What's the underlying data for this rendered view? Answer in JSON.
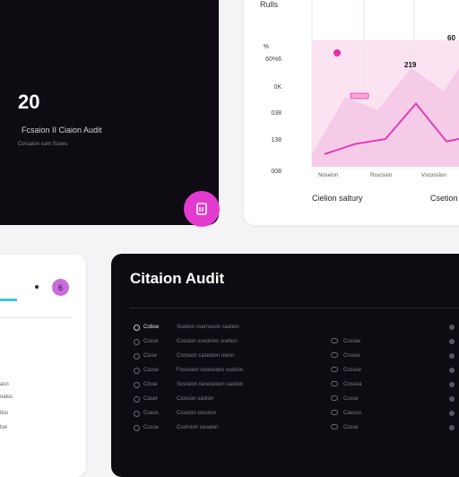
{
  "summary": {
    "count": "20",
    "subtitle": "Fcsaion II Ciaion Audit",
    "meta": "Corsaion sum Scoes",
    "fab_icon": "document-icon"
  },
  "chart_panel": {
    "title": "Rulls",
    "legend_a": "Cielion saltury",
    "legend_b": "Csetion"
  },
  "chart_data": {
    "type": "area",
    "title": "Rulls",
    "y_ticks": [
      "%",
      "60%6",
      "0K",
      "038",
      "138",
      "008"
    ],
    "x_ticks": [
      "Noseion",
      "Rsscsion",
      "Vsconsion"
    ],
    "annotations": [
      "219",
      "60"
    ],
    "series": [
      {
        "values": [
          0.1,
          0.55,
          0.45,
          0.78,
          0.6,
          1.0
        ]
      },
      {
        "values": [
          0.1,
          0.18,
          0.22,
          0.5,
          0.2,
          0.25
        ]
      }
    ],
    "colors": {
      "fill": "#f5c8e6",
      "fill_light": "#fbe3f1",
      "line": "#e231b3",
      "marker": "#e62ea8"
    }
  },
  "left_panel": {
    "badge": "6",
    "items": [
      "asn",
      "oalss",
      "itss",
      "tse"
    ]
  },
  "audit": {
    "title": "Citaion Audit",
    "rows": [
      {
        "id": "Cobse",
        "name": "Scetion csemsoon sastion",
        "status": "",
        "hl": true
      },
      {
        "id": "Cssse",
        "name": "Cossion sceoions scetion",
        "status": "Cssrae"
      },
      {
        "id": "Cisse",
        "name": "Coroson casesion osion",
        "status": "Crsses"
      },
      {
        "id": "Csose",
        "name": "Fosooion coosoions scetion",
        "status": "Cossse"
      },
      {
        "id": "Ctsse",
        "name": "Scsseon cesoseoon sastion",
        "status": "Cossea"
      },
      {
        "id": "Caser",
        "name": "Ciosson saoton",
        "status": "Cssse"
      },
      {
        "id": "Cseos",
        "name": "Csseion cesoion",
        "status": "Cassso"
      },
      {
        "id": "Cssoe",
        "name": "Coorsion cesaion",
        "status": "Cssse"
      }
    ]
  }
}
